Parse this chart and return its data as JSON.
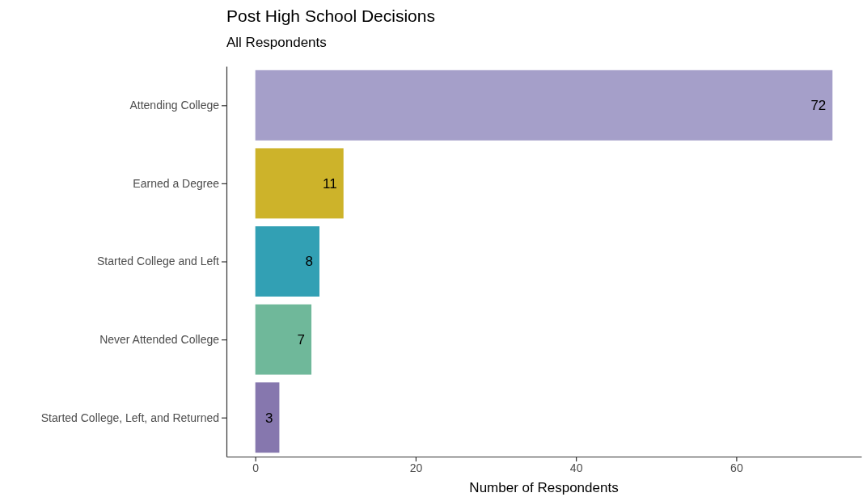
{
  "chart_data": {
    "type": "bar",
    "orientation": "horizontal",
    "title": "Post High School Decisions",
    "subtitle": "All Respondents",
    "xlabel": "Number of Respondents",
    "categories": [
      "Attending College",
      "Earned a Degree",
      "Started College and Left",
      "Never Attended College",
      "Started College, Left, and Returned"
    ],
    "values": [
      72,
      11,
      8,
      7,
      3
    ],
    "colors": [
      "#a59fc9",
      "#cdb32a",
      "#32a0b4",
      "#6fb89a",
      "#8677ae"
    ],
    "xlim": [
      -3.6,
      75.6
    ],
    "xticks": [
      0,
      20,
      40,
      60
    ],
    "data_labels": true,
    "grid": false
  }
}
